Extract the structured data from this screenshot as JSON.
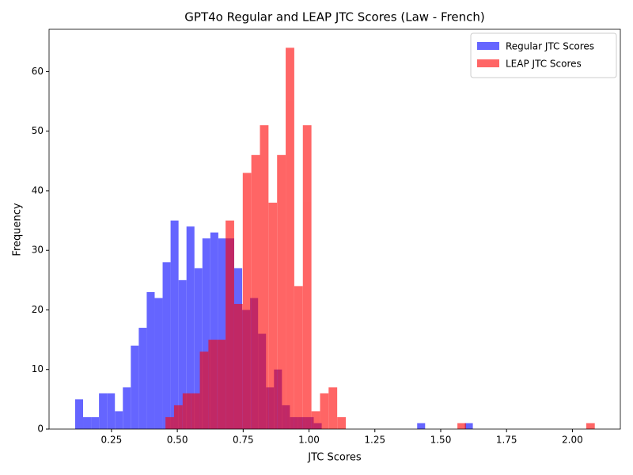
{
  "chart_data": {
    "type": "histogram",
    "title": "GPT4o Regular and LEAP JTC Scores (Law - French)",
    "x_label": "JTC Scores",
    "y_label": "Frequency",
    "legend": "upper right",
    "alpha": 0.6,
    "xlim": [
      0.013,
      2.182
    ],
    "ylim": [
      0,
      67.1
    ],
    "xticks": [
      0.25,
      {
        "value": 0.5,
        "label": "0.50"
      },
      0.75,
      {
        "value": 1.0,
        "label": "1.00"
      },
      1.25,
      {
        "value": 1.5,
        "label": "1.50"
      },
      1.75,
      {
        "value": 2.0,
        "label": "2.00"
      }
    ],
    "yticks": [
      0,
      10,
      20,
      30,
      40,
      50,
      60
    ],
    "series": [
      {
        "name": "Regular JTC Scores",
        "color": "#0000ff",
        "bins": [
          0.112,
          0.1422,
          0.1724,
          0.2026,
          0.2328,
          0.263,
          0.2932,
          0.3234,
          0.3536,
          0.3838,
          0.414,
          0.4442,
          0.4744,
          0.5046,
          0.5348,
          0.565,
          0.5952,
          0.6254,
          0.6556,
          0.6858,
          0.716,
          0.7462,
          0.7764,
          0.8066,
          0.8368,
          0.867,
          0.8972,
          0.9274,
          0.9576,
          0.9878,
          1.018,
          1.0482,
          1.0784,
          1.1086,
          1.1388,
          1.169,
          1.1992,
          1.2294,
          1.2596,
          1.2898,
          1.32,
          1.3502,
          1.3804,
          1.4106,
          1.4408,
          1.471,
          1.5012,
          1.5314,
          1.5616,
          1.5918,
          1.622
        ],
        "values": [
          5,
          2,
          2,
          6,
          6,
          3,
          7,
          14,
          17,
          23,
          22,
          28,
          35,
          25,
          34,
          27,
          32,
          33,
          32,
          32,
          27,
          20,
          22,
          16,
          7,
          10,
          4,
          2,
          2,
          2,
          1,
          0,
          0,
          0,
          0,
          0,
          0,
          0,
          0,
          0,
          0,
          0,
          0,
          1,
          0,
          0,
          0,
          0,
          0,
          1
        ]
      },
      {
        "name": "LEAP JTC Scores",
        "color": "#ff0000",
        "bins": [
          0.455,
          0.4876,
          0.5202,
          0.5528,
          0.5854,
          0.618,
          0.6506,
          0.6832,
          0.7158,
          0.7484,
          0.781,
          0.8136,
          0.8462,
          0.8788,
          0.9114,
          0.944,
          0.9766,
          1.0092,
          1.0418,
          1.0744,
          1.107,
          1.1396,
          1.1722,
          1.2048,
          1.2374,
          1.27,
          1.3026,
          1.3352,
          1.3678,
          1.4004,
          1.433,
          1.4656,
          1.4982,
          1.5308,
          1.5634,
          1.596,
          1.6286,
          1.6612,
          1.6938,
          1.7264,
          1.759,
          1.7916,
          1.8242,
          1.8568,
          1.8894,
          1.922,
          1.9546,
          1.9872,
          2.0198,
          2.0524,
          2.085
        ],
        "values": [
          2,
          4,
          6,
          6,
          13,
          15,
          15,
          35,
          21,
          43,
          46,
          51,
          38,
          46,
          64,
          24,
          51,
          3,
          6,
          7,
          2,
          0,
          0,
          0,
          0,
          0,
          0,
          0,
          0,
          0,
          0,
          0,
          0,
          0,
          1,
          0,
          0,
          0,
          0,
          0,
          0,
          0,
          0,
          0,
          0,
          0,
          0,
          0,
          0,
          1
        ]
      }
    ]
  }
}
